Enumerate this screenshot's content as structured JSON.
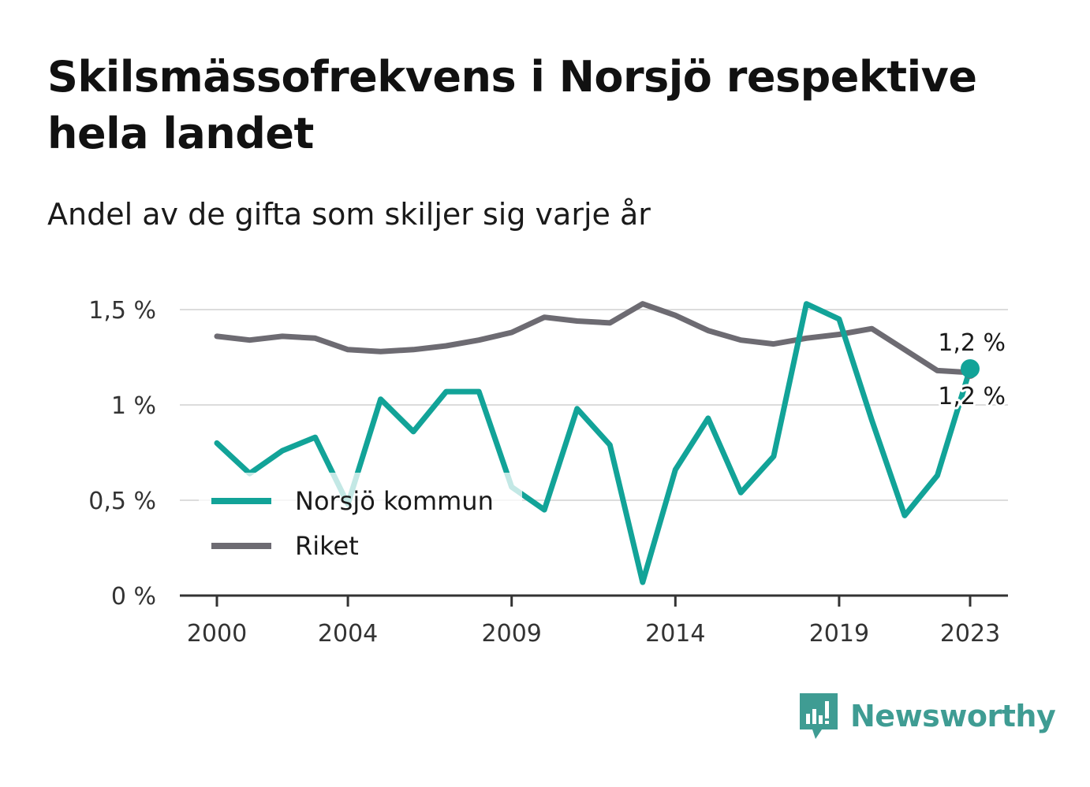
{
  "title": "Skilsmässofrekvens i Norsjö respektive hela landet",
  "subtitle": "Andel av de gifta som skiljer sig varje år",
  "brand": {
    "name": "Newsworthy",
    "logo_icon": "bar-chart-speech-bubble-icon",
    "color": "#3f9c93"
  },
  "chart_data": {
    "type": "line",
    "x": [
      2000,
      2001,
      2002,
      2003,
      2004,
      2005,
      2006,
      2007,
      2008,
      2009,
      2010,
      2011,
      2012,
      2013,
      2014,
      2015,
      2016,
      2017,
      2018,
      2019,
      2020,
      2021,
      2022,
      2023
    ],
    "x_ticks": [
      2000,
      2004,
      2009,
      2014,
      2019,
      2023
    ],
    "x_tick_labels": [
      "2000",
      "2004",
      "2009",
      "2014",
      "2019",
      "2023"
    ],
    "y_ticks": [
      0,
      0.5,
      1,
      1.5
    ],
    "y_tick_labels": [
      "0 %",
      "0,5 %",
      "1 %",
      "1,5 %"
    ],
    "ylim": [
      0,
      1.55
    ],
    "grid": true,
    "legend_position": "bottom-left",
    "series": [
      {
        "name": "Norsjö kommun",
        "color": "#12a398",
        "values": [
          0.8,
          0.64,
          0.76,
          0.83,
          0.48,
          1.03,
          0.86,
          1.07,
          1.07,
          0.57,
          0.45,
          0.98,
          0.79,
          0.07,
          0.66,
          0.93,
          0.54,
          0.73,
          1.53,
          1.45,
          0.92,
          0.42,
          0.63,
          1.19
        ],
        "end_label": "1,2 %"
      },
      {
        "name": "Riket",
        "color": "#6d6b72",
        "values": [
          1.36,
          1.34,
          1.36,
          1.35,
          1.29,
          1.28,
          1.29,
          1.31,
          1.34,
          1.38,
          1.46,
          1.44,
          1.43,
          1.53,
          1.47,
          1.39,
          1.34,
          1.32,
          1.35,
          1.37,
          1.4,
          1.29,
          1.18,
          1.17
        ],
        "end_label": "1,2 %"
      }
    ]
  }
}
